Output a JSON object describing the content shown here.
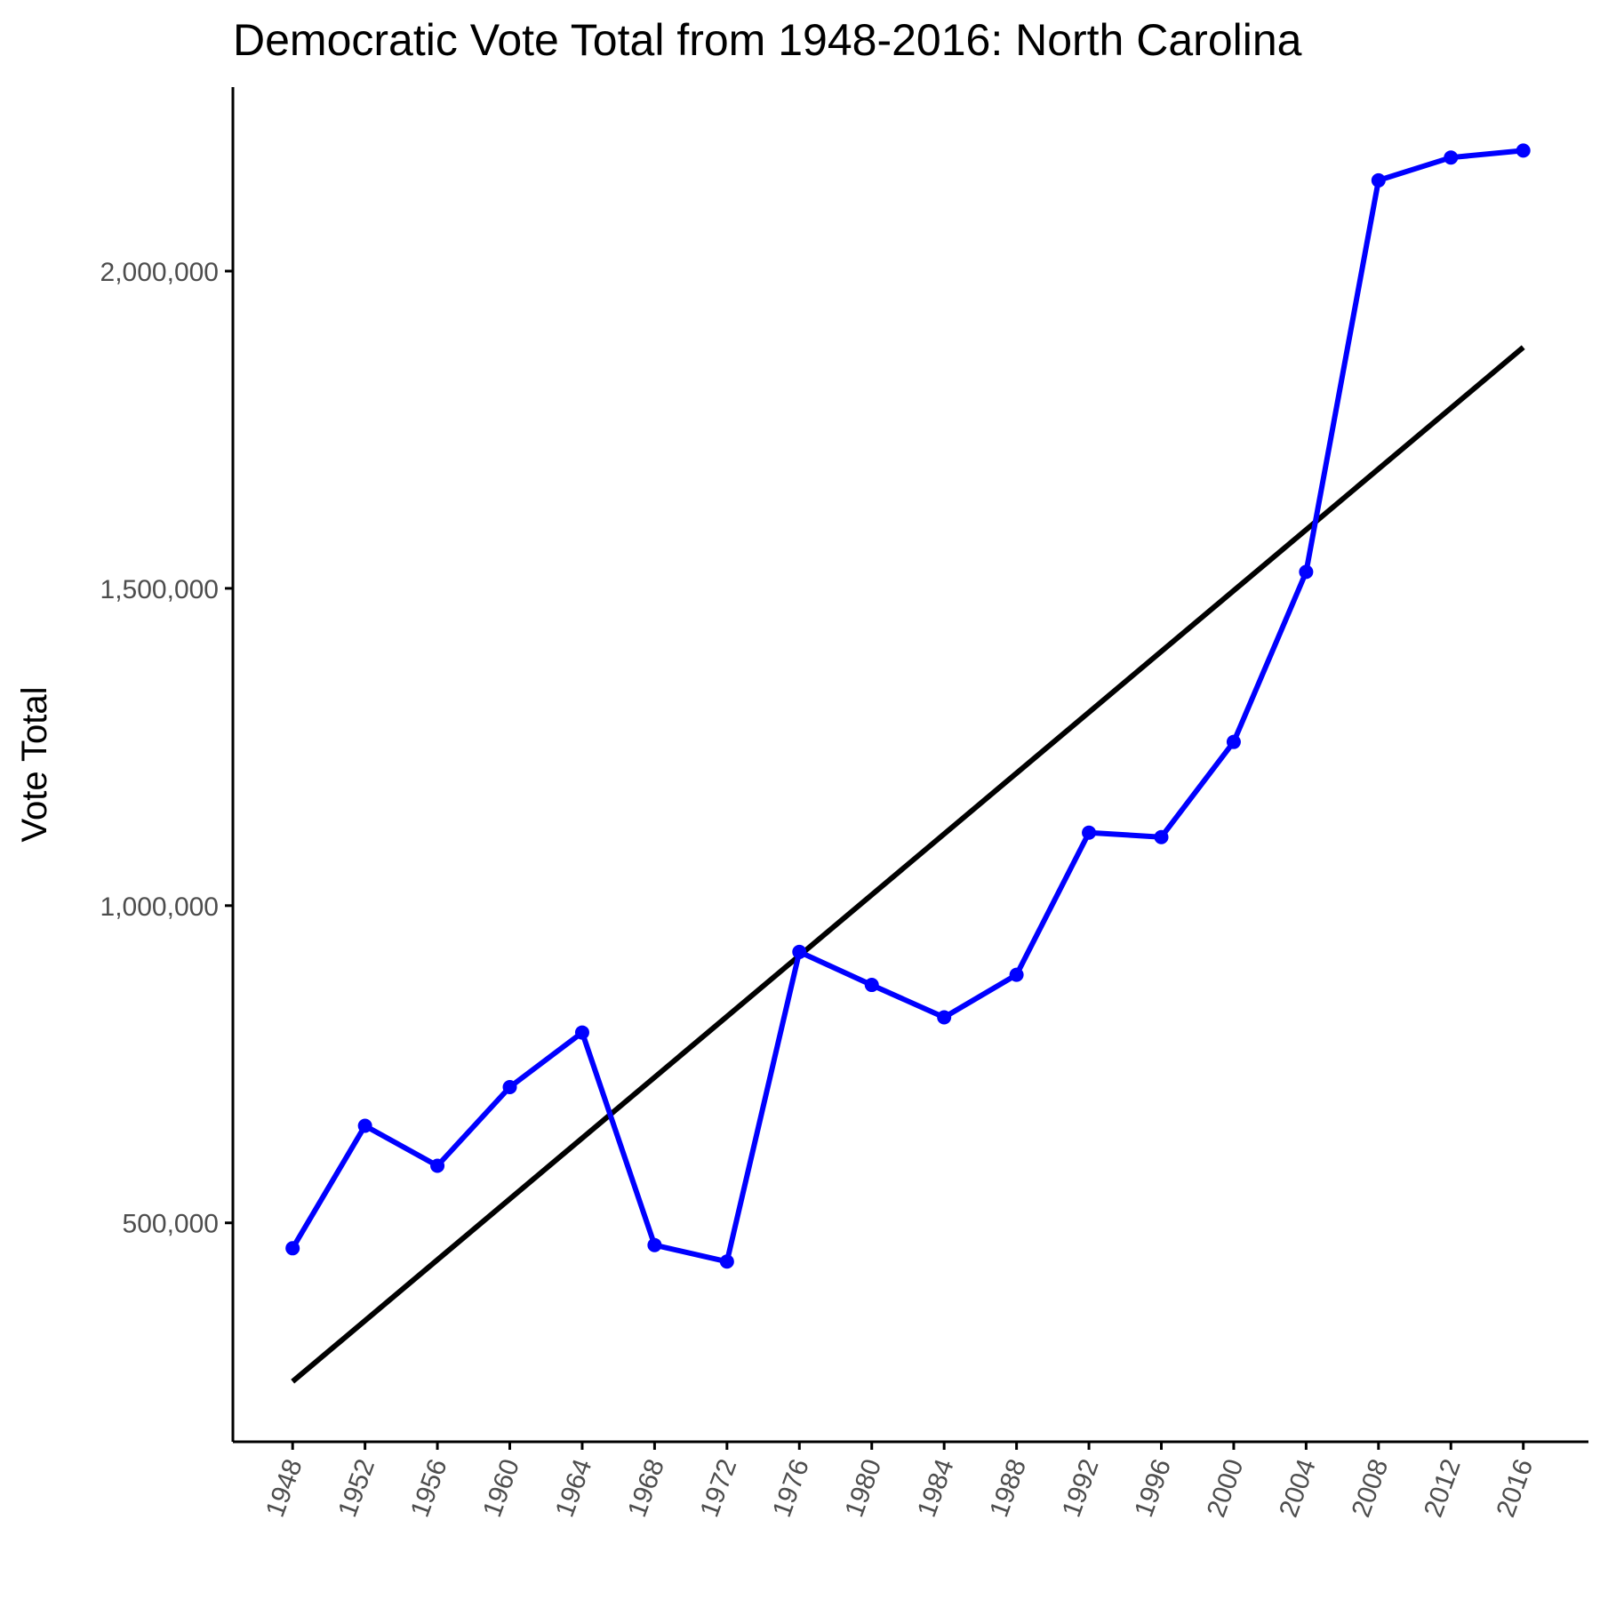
{
  "chart_data": {
    "type": "line",
    "title": "Democratic Vote Total from 1948-2016: North Carolina",
    "xlabel": "",
    "ylabel": "Vote Total",
    "x": [
      1948,
      1952,
      1956,
      1960,
      1964,
      1968,
      1972,
      1976,
      1980,
      1984,
      1988,
      1992,
      1996,
      2000,
      2004,
      2008,
      2012,
      2016
    ],
    "x_tick_labels": [
      "1948",
      "1952",
      "1956",
      "1960",
      "1964",
      "1968",
      "1972",
      "1976",
      "1980",
      "1984",
      "1988",
      "1992",
      "1996",
      "2000",
      "2004",
      "2008",
      "2012",
      "2016"
    ],
    "y_ticks": [
      500000,
      1000000,
      1500000,
      2000000
    ],
    "y_tick_labels": [
      "500,000",
      "1,000,000",
      "1,500,000",
      "2,000,000"
    ],
    "ylim": [
      155000,
      2290000
    ],
    "xlim": [
      1944.7,
      2019.6
    ],
    "series": [
      {
        "values": [
          460000,
          653000,
          590000,
          714000,
          800000,
          465000,
          439000,
          927000,
          875000,
          824000,
          891000,
          1115000,
          1108000,
          1258000,
          1526000,
          2143000,
          2179000,
          2190000
        ],
        "color": "#0000ff",
        "markers": true
      }
    ],
    "trend_line": {
      "x": [
        1948,
        2016
      ],
      "values": [
        250000,
        1880000
      ],
      "color": "#000000"
    },
    "grid": false,
    "legend": "none"
  }
}
